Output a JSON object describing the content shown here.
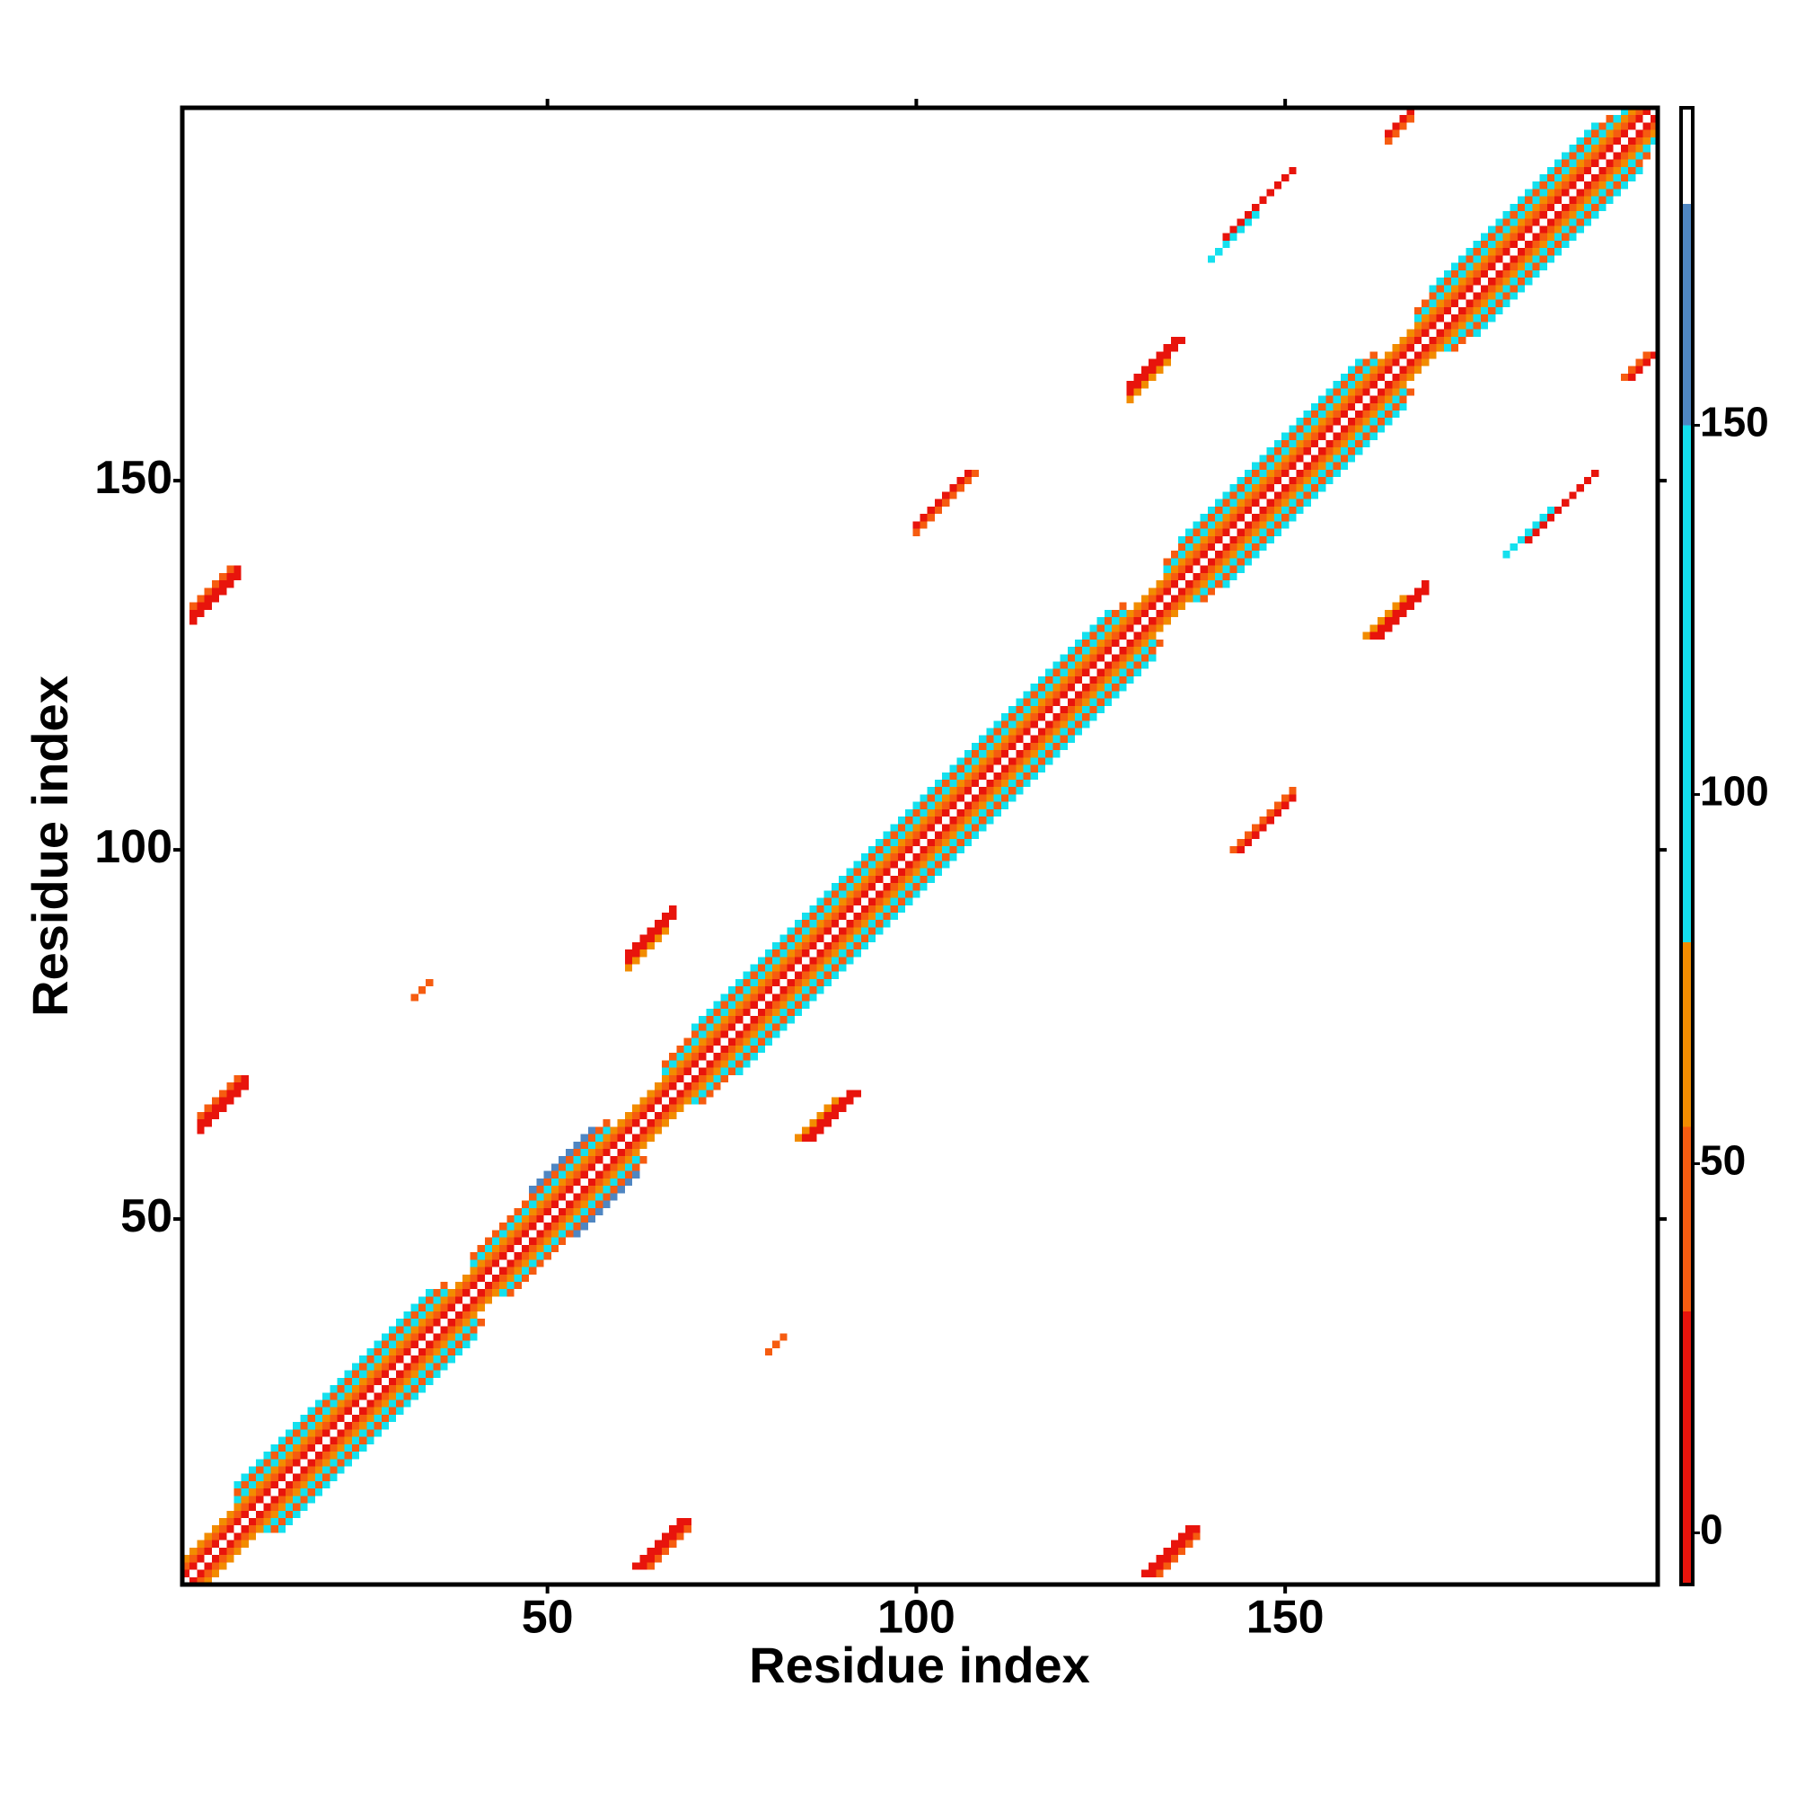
{
  "chart_data": {
    "type": "heatmap",
    "x_label": "Residue index",
    "y_label": "Residue index",
    "xlim": [
      0.5,
      200.5
    ],
    "ylim": [
      0.5,
      200.5
    ],
    "xticks": [
      50,
      100,
      150
    ],
    "yticks": [
      50,
      100,
      150
    ],
    "symmetric": true,
    "runs": [
      {
        "i0": 1,
        "i1": 199,
        "offset": 1,
        "value": 10
      },
      {
        "i0": 1,
        "i1": 198,
        "offset": 2,
        "value": 40
      },
      {
        "i0": 1,
        "i1": 197,
        "offset": 3,
        "value": 65
      },
      {
        "i0": 8,
        "i1": 36,
        "offset": 4,
        "value": 100
      },
      {
        "i0": 40,
        "i1": 58,
        "offset": 4,
        "value": 100
      },
      {
        "i0": 66,
        "i1": 128,
        "offset": 4,
        "value": 100
      },
      {
        "i0": 134,
        "i1": 162,
        "offset": 4,
        "value": 100
      },
      {
        "i0": 168,
        "i1": 196,
        "offset": 4,
        "value": 100
      },
      {
        "i0": 8,
        "i1": 36,
        "offset": 5,
        "value": 40
      },
      {
        "i0": 40,
        "i1": 58,
        "offset": 5,
        "value": 40
      },
      {
        "i0": 66,
        "i1": 128,
        "offset": 5,
        "value": 40
      },
      {
        "i0": 134,
        "i1": 162,
        "offset": 5,
        "value": 40
      },
      {
        "i0": 168,
        "i1": 194,
        "offset": 5,
        "value": 40
      },
      {
        "i0": 8,
        "i1": 34,
        "offset": 6,
        "value": 100
      },
      {
        "i0": 48,
        "i1": 56,
        "offset": 6,
        "value": 160
      },
      {
        "i0": 70,
        "i1": 126,
        "offset": 6,
        "value": 100
      },
      {
        "i0": 136,
        "i1": 160,
        "offset": 6,
        "value": 100
      },
      {
        "i0": 170,
        "i1": 192,
        "offset": 6,
        "value": 100
      },
      {
        "i0": 2,
        "i1": 8,
        "offset": 129,
        "value": 10
      },
      {
        "i0": 2,
        "i1": 8,
        "offset": 130,
        "value": 10
      },
      {
        "i0": 2,
        "i1": 7,
        "offset": 131,
        "value": 40
      },
      {
        "i0": 3,
        "i1": 9,
        "offset": 59,
        "value": 10
      },
      {
        "i0": 3,
        "i1": 9,
        "offset": 60,
        "value": 10
      },
      {
        "i0": 3,
        "i1": 8,
        "offset": 61,
        "value": 40
      },
      {
        "i0": 61,
        "i1": 67,
        "offset": 24,
        "value": 10
      },
      {
        "i0": 61,
        "i1": 67,
        "offset": 25,
        "value": 10
      },
      {
        "i0": 61,
        "i1": 66,
        "offset": 23,
        "value": 65
      },
      {
        "i0": 129,
        "i1": 136,
        "offset": 33,
        "value": 10
      },
      {
        "i0": 129,
        "i1": 135,
        "offset": 34,
        "value": 10
      },
      {
        "i0": 129,
        "i1": 134,
        "offset": 32,
        "value": 65
      },
      {
        "i0": 164,
        "i1": 167,
        "offset": 33,
        "value": 10
      },
      {
        "i0": 164,
        "i1": 167,
        "offset": 32,
        "value": 40
      },
      {
        "i0": 32,
        "i1": 34,
        "offset": 48,
        "value": 40
      },
      {
        "i0": 100,
        "i1": 108,
        "offset": 43,
        "value": 40
      },
      {
        "i0": 100,
        "i1": 107,
        "offset": 44,
        "value": 10
      },
      {
        "i0": 142,
        "i1": 151,
        "offset": 41,
        "value": 10
      },
      {
        "i0": 140,
        "i1": 146,
        "offset": 40,
        "value": 100
      }
    ],
    "colorbar": {
      "lim": [
        -7,
        193
      ],
      "ticks": [
        0,
        50,
        100,
        150
      ],
      "bands": [
        {
          "from": -7,
          "to": 30,
          "color": "#e8140c"
        },
        {
          "from": 30,
          "to": 55,
          "color": "#f65c10"
        },
        {
          "from": 55,
          "to": 80,
          "color": "#f28c00"
        },
        {
          "from": 80,
          "to": 150,
          "color": "#14e0ee"
        },
        {
          "from": 150,
          "to": 180,
          "color": "#4f86c2"
        },
        {
          "from": 180,
          "to": 193,
          "color": "#ffffff"
        }
      ]
    }
  }
}
